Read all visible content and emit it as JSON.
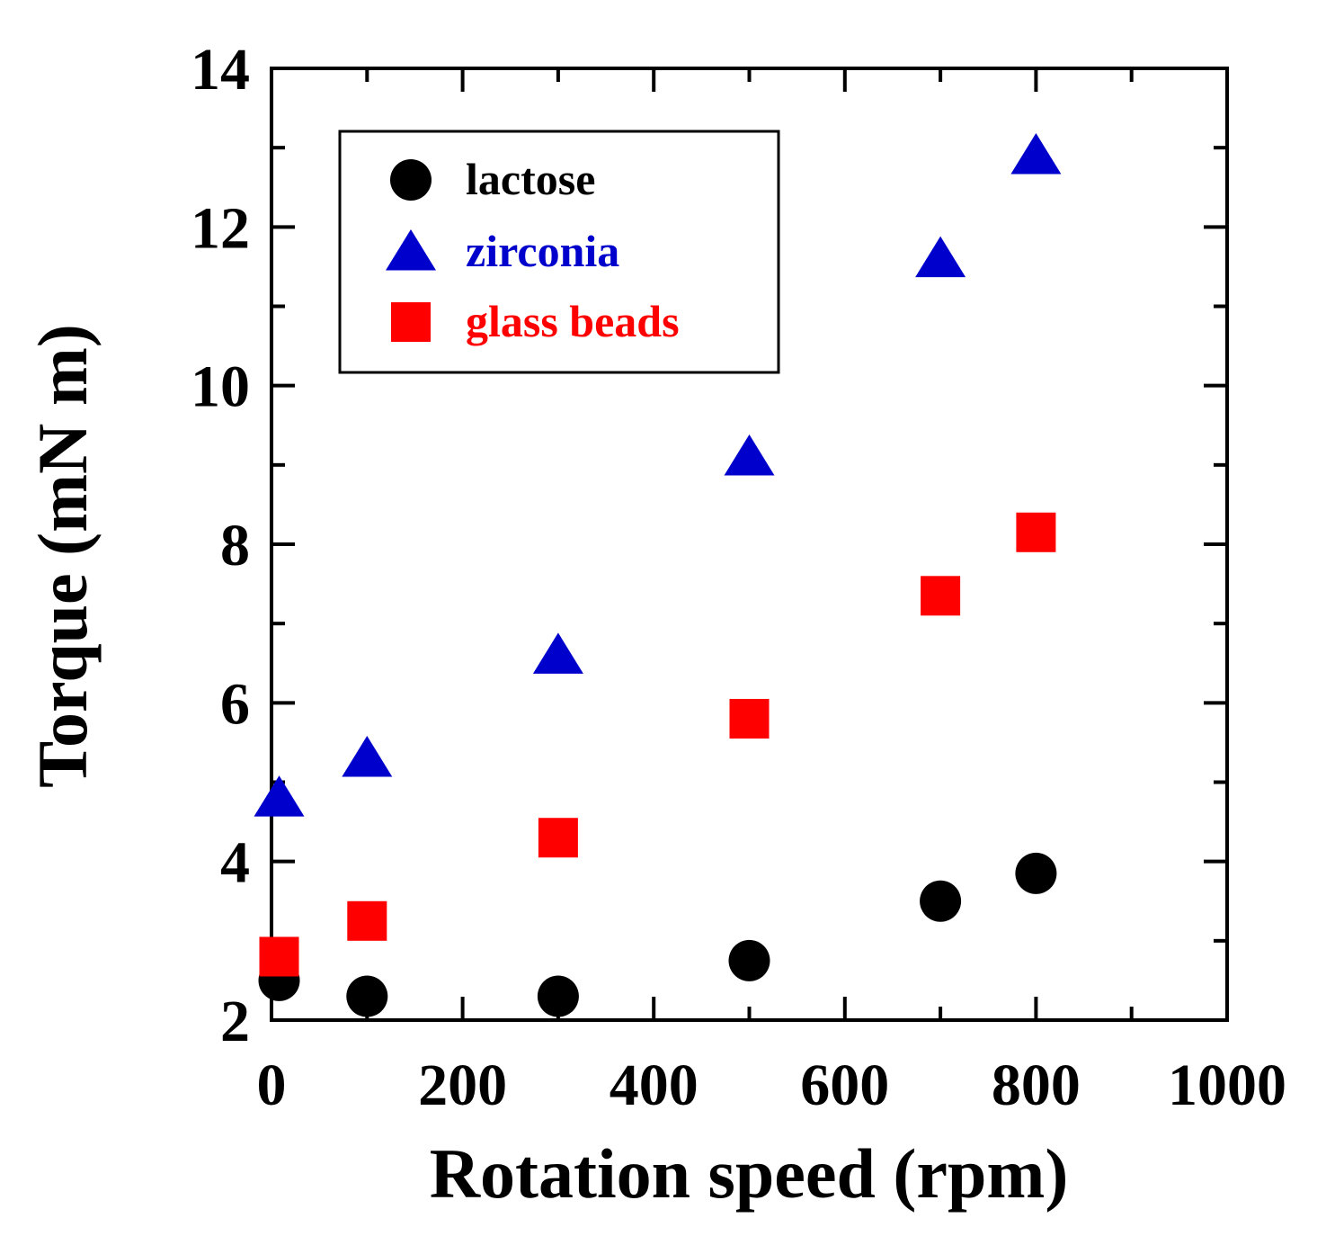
{
  "chart_data": {
    "type": "scatter",
    "title": "",
    "xlabel": "Rotation speed  (rpm)",
    "ylabel": "Torque  (mN m)",
    "xlim": [
      0,
      1000
    ],
    "ylim": [
      2,
      14
    ],
    "x_major_ticks": [
      0,
      200,
      400,
      600,
      800,
      1000
    ],
    "x_tick_labels": [
      "0",
      "200",
      "400",
      "600",
      "800",
      "1000"
    ],
    "x_minor_step": 100,
    "y_major_ticks": [
      2,
      4,
      6,
      8,
      10,
      12,
      14
    ],
    "y_tick_labels": [
      "2",
      "4",
      "6",
      "8",
      "10",
      "12",
      "14"
    ],
    "y_minor_step": 1,
    "grid": false,
    "legend_position": "top-left",
    "series": [
      {
        "name": "lactose",
        "marker": "circle",
        "color": "#000000",
        "x": [
          8,
          100,
          300,
          500,
          700,
          800
        ],
        "y": [
          2.5,
          2.3,
          2.3,
          2.75,
          3.5,
          3.85
        ]
      },
      {
        "name": "zirconia",
        "marker": "triangle",
        "color": "#0000cc",
        "x": [
          8,
          100,
          300,
          500,
          700,
          800
        ],
        "y": [
          4.8,
          5.3,
          6.6,
          9.1,
          11.6,
          12.9
        ]
      },
      {
        "name": "glass beads",
        "marker": "square",
        "color": "#ff0000",
        "x": [
          8,
          100,
          300,
          500,
          700,
          800
        ],
        "y": [
          2.8,
          3.25,
          4.3,
          5.8,
          7.35,
          8.15
        ]
      }
    ]
  }
}
